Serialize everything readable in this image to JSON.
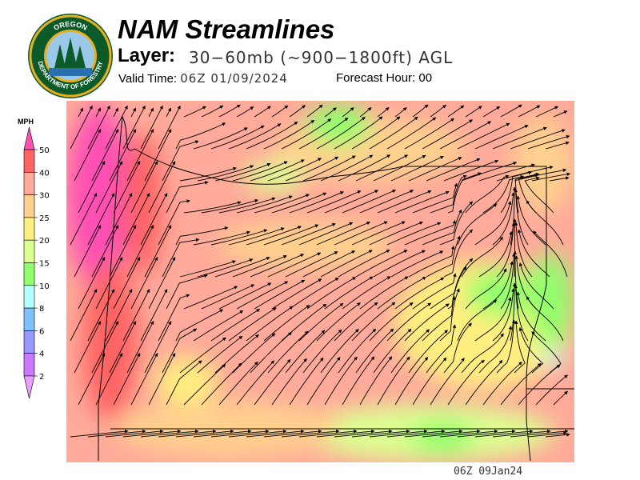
{
  "logo": {
    "text_top": "OREGON",
    "text_bottom": "DEPARTMENT OF FORESTRY"
  },
  "header": {
    "title": "NAM Streamlines",
    "layer_label": "Layer:",
    "layer_value": "30−60mb (~900−1800ft) AGL",
    "valid_label": "Valid Time:",
    "valid_value": "06Z 01/09/2024",
    "forecast_label": "Forecast Hour:",
    "forecast_value": "00"
  },
  "legend": {
    "unit": "MPH",
    "levels": [
      "50",
      "40",
      "30",
      "25",
      "20",
      "15",
      "10",
      "8",
      "6",
      "4",
      "2"
    ],
    "colors": [
      "#ff50b4",
      "#ff6464",
      "#ffaa9a",
      "#ffd08e",
      "#ffee80",
      "#dcff90",
      "#90ff6a",
      "#b4ffff",
      "#80c0ff",
      "#9898ff",
      "#c878ff",
      "#eaa0ff"
    ]
  },
  "map": {
    "valid_stamp": "06Z 09Jan24"
  }
}
